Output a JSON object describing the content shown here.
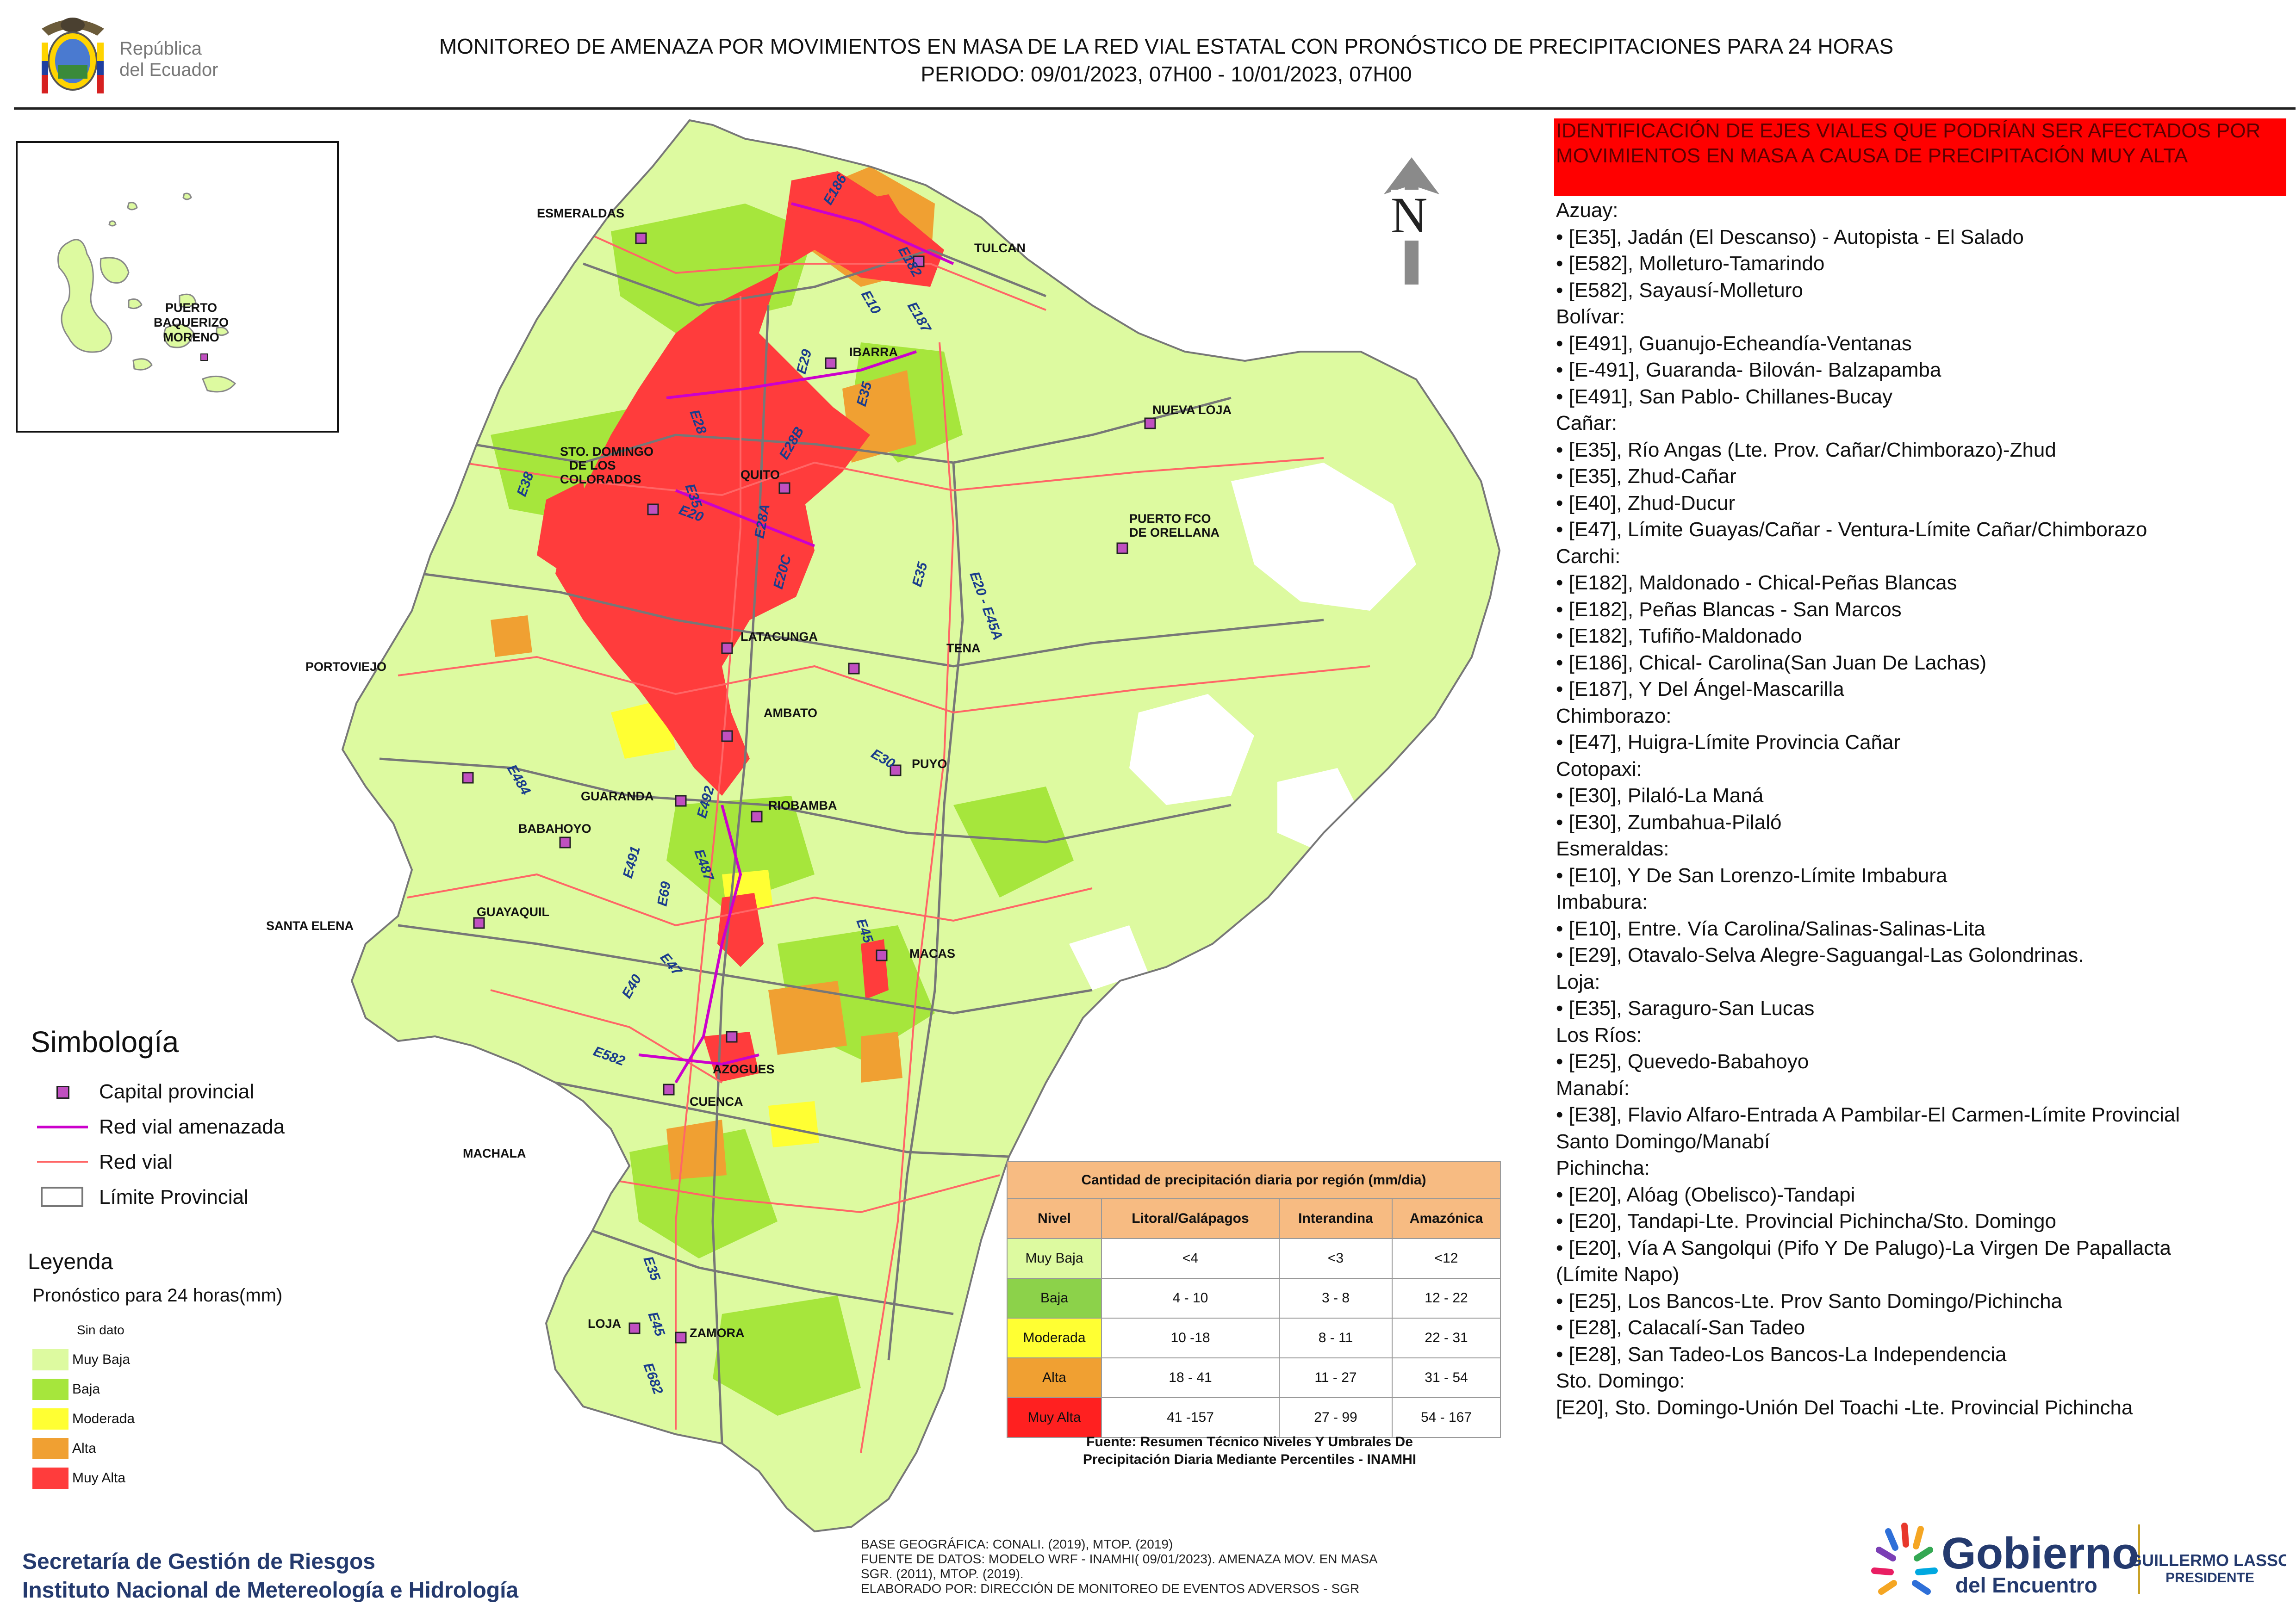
{
  "header": {
    "country_line1": "República",
    "country_line2": "del Ecuador",
    "title_line1": "MONITOREO DE AMENAZA POR MOVIMIENTOS EN MASA DE LA RED VIAL  ESTATAL  CON PRONÓSTICO  DE  PRECIPITACIONES PARA 24 HORAS",
    "title_line2": "PERIODO: 09/01/2023, 07H00 - 10/01/2023, 07H00"
  },
  "north_label": "N",
  "cities": {
    "esmeraldas": "ESMERALDAS",
    "tulcan": "TULCAN",
    "ibarra": "IBARRA",
    "nueva_loja": "NUEVA LOJA",
    "sto_domingo_1": "STO. DOMINGO",
    "sto_domingo_2": "DE LOS",
    "sto_domingo_3": "COLORADOS",
    "quito": "QUITO",
    "puerto_fco_1": "PUERTO FCO",
    "puerto_fco_2": "DE ORELLANA",
    "portoviejo": "PORTOVIEJO",
    "latacunga": "LATACUNGA",
    "tena": "TENA",
    "ambato": "AMBATO",
    "puyo": "PUYO",
    "guaranda": "GUARANDA",
    "riobamba": "RIOBAMBA",
    "babahoyo": "BABAHOYO",
    "guayaquil": "GUAYAQUIL",
    "santa_elena": "SANTA ELENA",
    "macas": "MACAS",
    "azogues": "AZOGUES",
    "cuenca": "CUENCA",
    "machala": "MACHALA",
    "loja": "LOJA",
    "zamora": "ZAMORA",
    "puerto_baq_1": "PUERTO",
    "puerto_baq_2": "BAQUERIZO",
    "puerto_baq_3": "MORENO"
  },
  "road_labels": [
    "E10",
    "E182",
    "E187",
    "E186",
    "E29",
    "E35",
    "E28",
    "E28B",
    "E35",
    "E20",
    "E28A",
    "E38",
    "E20C",
    "E35",
    "E20 - E45A",
    "E484",
    "E492",
    "E491",
    "E487",
    "E47",
    "E40",
    "E582",
    "E35",
    "E69",
    "E682",
    "E45",
    "E30",
    "E45"
  ],
  "threat_header": "IDENTIFICACIÓN DE EJES VIALES QUE PODRÍAN SER AFECTADOS POR MOVIMIENTOS EN MASA A CAUSA DE PRECIPITACIÓN MUY ALTA",
  "threat_lines": [
    "Azuay:",
    "• [E35], Jadán (El Descanso) -  Autopista - El Salado",
    "• [E582], Molleturo-Tamarindo",
    "• [E582], Sayausí-Molleturo",
    "Bolívar:",
    "• [E491], Guanujo-Echeandía-Ventanas",
    "• [E-491], Guaranda- Bilován- Balzapamba",
    "• [E491], San Pablo- Chillanes-Bucay",
    "Cañar:",
    "• [E35], Río Angas (Lte. Prov. Cañar/Chimborazo)-Zhud",
    "• [E35], Zhud-Cañar",
    "• [E40], Zhud-Ducur",
    "• [E47], Límite Guayas/Cañar - Ventura-Límite Cañar/Chimborazo",
    "Carchi:",
    "• [E182], Maldonado - Chical-Peñas Blancas",
    "• [E182], Peñas Blancas - San Marcos",
    "• [E182], Tufiño-Maldonado",
    "• [E186], Chical- Carolina(San Juan De Lachas)",
    "• [E187], Y Del Ángel-Mascarilla",
    "Chimborazo:",
    "• [E47], Huigra-Límite Provincia Cañar",
    "Cotopaxi:",
    "• [E30], Pilaló-La Maná",
    "• [E30], Zumbahua-Pilaló",
    "Esmeraldas:",
    "• [E10], Y De San Lorenzo-Límite Imbabura",
    "Imbabura:",
    "• [E10], Entre. Vía Carolina/Salinas-Salinas-Lita",
    "• [E29], Otavalo-Selva Alegre-Saguangal-Las Golondrinas.",
    "Loja:",
    "• [E35], Saraguro-San Lucas",
    "Los Ríos:",
    "• [E25], Quevedo-Babahoyo",
    "Manabí:",
    "• [E38], Flavio Alfaro-Entrada A Pambilar-El Carmen-Límite Provincial",
    "Santo Domingo/Manabí",
    "Pichincha:",
    "• [E20], Alóag (Obelisco)-Tandapi",
    "• [E20], Tandapi-Lte. Provincial Pichincha/Sto. Domingo",
    "• [E20], Vía A Sangolqui (Pifo Y De Palugo)-La Virgen De Papallacta",
    "(Límite Napo)",
    "• [E25], Los Bancos-Lte. Prov Santo Domingo/Pichincha",
    "• [E28], Calacalí-San Tadeo",
    "• [E28], San Tadeo-Los Bancos-La Independencia",
    "Sto. Domingo:",
    "[E20], Sto. Domingo-Unión Del Toachi -Lte. Provincial Pichincha"
  ],
  "simbologia": {
    "title": "Simbología",
    "items": [
      "Capital provincial",
      "Red vial amenazada",
      "Red vial",
      "Límite Provincial"
    ]
  },
  "leyenda": {
    "title": "Leyenda",
    "subtitle": "Pronóstico para 24 horas(mm)",
    "items": [
      {
        "label": "Sin dato",
        "color": "#ffffff"
      },
      {
        "label": " Muy Baja",
        "color": "#ddfaa0"
      },
      {
        "label": "Baja",
        "color": "#a6e63c"
      },
      {
        "label": "Moderada",
        "color": "#ffff33"
      },
      {
        "label": "Alta",
        "color": "#f0a032"
      },
      {
        "label": "Muy Alta",
        "color": "#ff3c3c"
      }
    ]
  },
  "precip_table": {
    "title": "Cantidad de precipitación diaria por región (mm/dia)",
    "headers": [
      "Nivel",
      "Litoral/Galápagos",
      "Interandina",
      "Amazónica"
    ],
    "rows": [
      {
        "nivel": "Muy Baja",
        "color": "#ddfaa0",
        "values": [
          "<4",
          "<3",
          "<12"
        ]
      },
      {
        "nivel": "Baja",
        "color": "#8cd24a",
        "values": [
          "4 - 10",
          "3 - 8",
          "12 - 22"
        ]
      },
      {
        "nivel": "Moderada",
        "color": "#ffff33",
        "values": [
          "10 -18",
          "8 - 11",
          "22 - 31"
        ]
      },
      {
        "nivel": "Alta",
        "color": "#f0a032",
        "values": [
          "18 - 41",
          "11 - 27",
          "31 - 54"
        ]
      },
      {
        "nivel": "Muy Alta",
        "color": "#ff2020",
        "values": [
          "41 -157",
          "27 - 99",
          "54 - 167"
        ]
      }
    ],
    "source_line1": "Fuente: Resumen Técnico Niveles Y Umbrales De",
    "source_line2": "Precipitación Diaria Mediante Percentiles - INAMHI"
  },
  "footer": {
    "org_line1": "Secretaría de Gestión de Riesgos",
    "org_line2": "Instituto Nacional de Metereología e Hidrología",
    "base_line1": "BASE GEOGRÁFICA: CONALI. (2019), MTOP. (2019)",
    "base_line2": "FUENTE DE DATOS: MODELO WRF - INAMHI( 09/01/2023).  AMENAZA MOV. EN MASA",
    "base_line3": "SGR. (2011), MTOP. (2019).",
    "base_line4": "ELABORADO POR: DIRECCIÓN DE MONITOREO DE EVENTOS ADVERSOS - SGR",
    "gob_word": "Gobierno",
    "gob_sub": "del Encuentro",
    "president_name": "GUILLERMO LASSO",
    "president_title": "PRESIDENTE"
  }
}
